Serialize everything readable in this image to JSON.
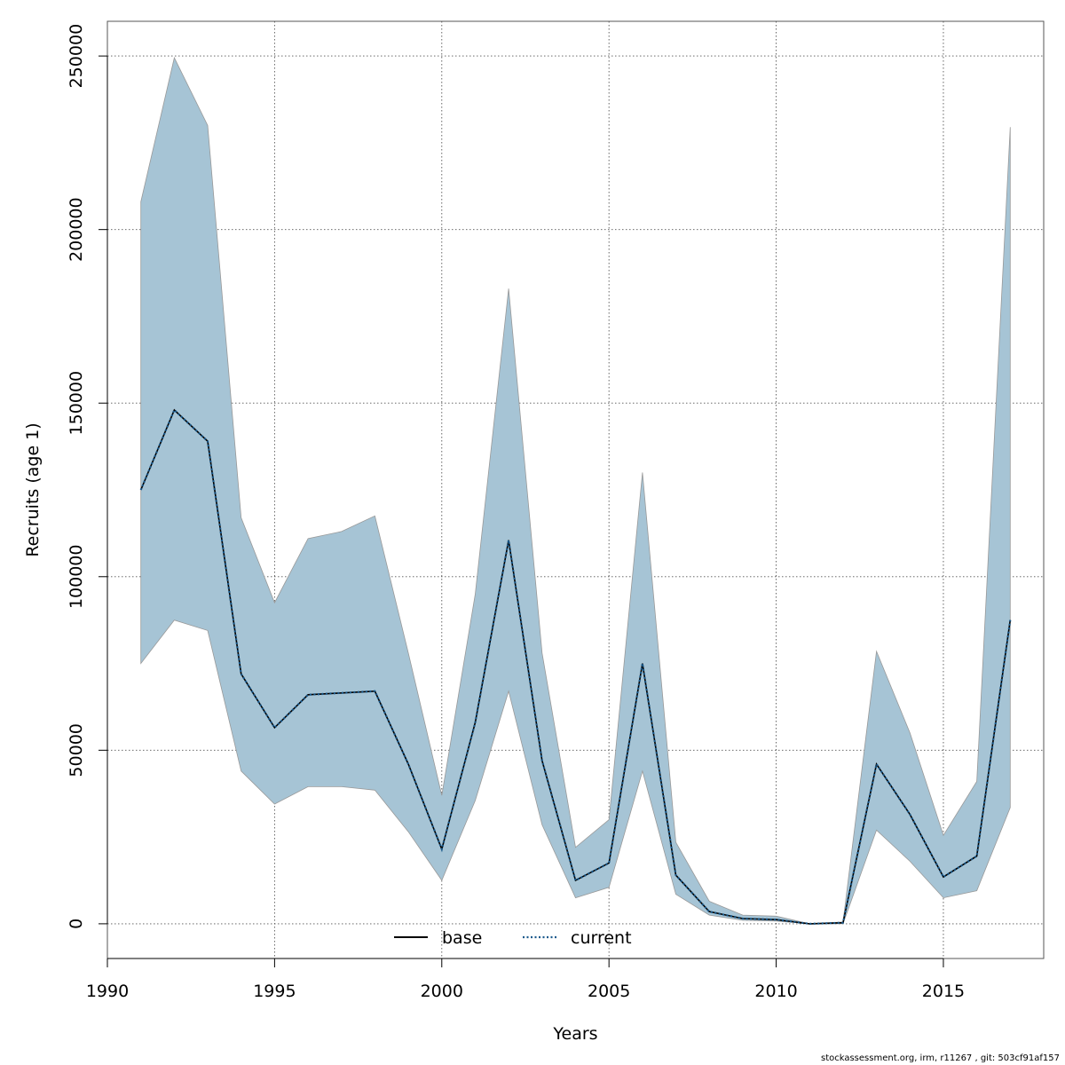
{
  "chart_data": {
    "type": "line",
    "xlabel": "Years",
    "ylabel": "Recruits (age 1)",
    "xlim": [
      1990,
      2018
    ],
    "ylim": [
      -10000,
      260000
    ],
    "xticks": [
      1990,
      1995,
      2000,
      2005,
      2010,
      2015
    ],
    "yticks": [
      0,
      50000,
      100000,
      150000,
      200000,
      250000
    ],
    "grid": true,
    "legend_position": "bottom-center",
    "band_color": "#a6c4d5",
    "x": [
      1991,
      1992,
      1993,
      1994,
      1995,
      1996,
      1997,
      1998,
      1999,
      2000,
      2001,
      2002,
      2003,
      2004,
      2005,
      2006,
      2007,
      2008,
      2009,
      2010,
      2011,
      2012,
      2013,
      2014,
      2015,
      2016,
      2017
    ],
    "band": {
      "upper": [
        208000,
        249500,
        230000,
        117000,
        92500,
        111000,
        113000,
        117500,
        78000,
        37000,
        95000,
        183000,
        78000,
        22000,
        30000,
        130000,
        23500,
        6500,
        2500,
        2200,
        0,
        500,
        78500,
        55000,
        25500,
        41000,
        229500
      ],
      "lower": [
        75000,
        87500,
        84500,
        44000,
        34500,
        39500,
        39500,
        38500,
        26500,
        12500,
        35500,
        67000,
        28500,
        7500,
        10500,
        44000,
        8500,
        2500,
        1000,
        800,
        0,
        0,
        27000,
        18000,
        7500,
        9500,
        33500
      ]
    },
    "series": [
      {
        "name": "base",
        "color": "#000000",
        "style": "solid",
        "values": [
          125000,
          148000,
          139000,
          72000,
          56500,
          66000,
          66500,
          67000,
          46000,
          21500,
          58000,
          110500,
          47000,
          12500,
          17500,
          75000,
          14000,
          3500,
          1500,
          1200,
          0,
          300,
          46000,
          31500,
          13500,
          19500,
          87500
        ]
      },
      {
        "name": "current",
        "color": "#1a5a8c",
        "style": "dotted",
        "values": [
          125000,
          148000,
          139000,
          72000,
          56500,
          66000,
          66500,
          67000,
          46000,
          21500,
          58000,
          110500,
          47000,
          12500,
          17500,
          75000,
          14000,
          3500,
          1500,
          1200,
          0,
          300,
          46000,
          31500,
          13500,
          19500,
          87500
        ]
      }
    ]
  },
  "footer": "stockassessment.org, irm, r11267 , git: 503cf91af157"
}
